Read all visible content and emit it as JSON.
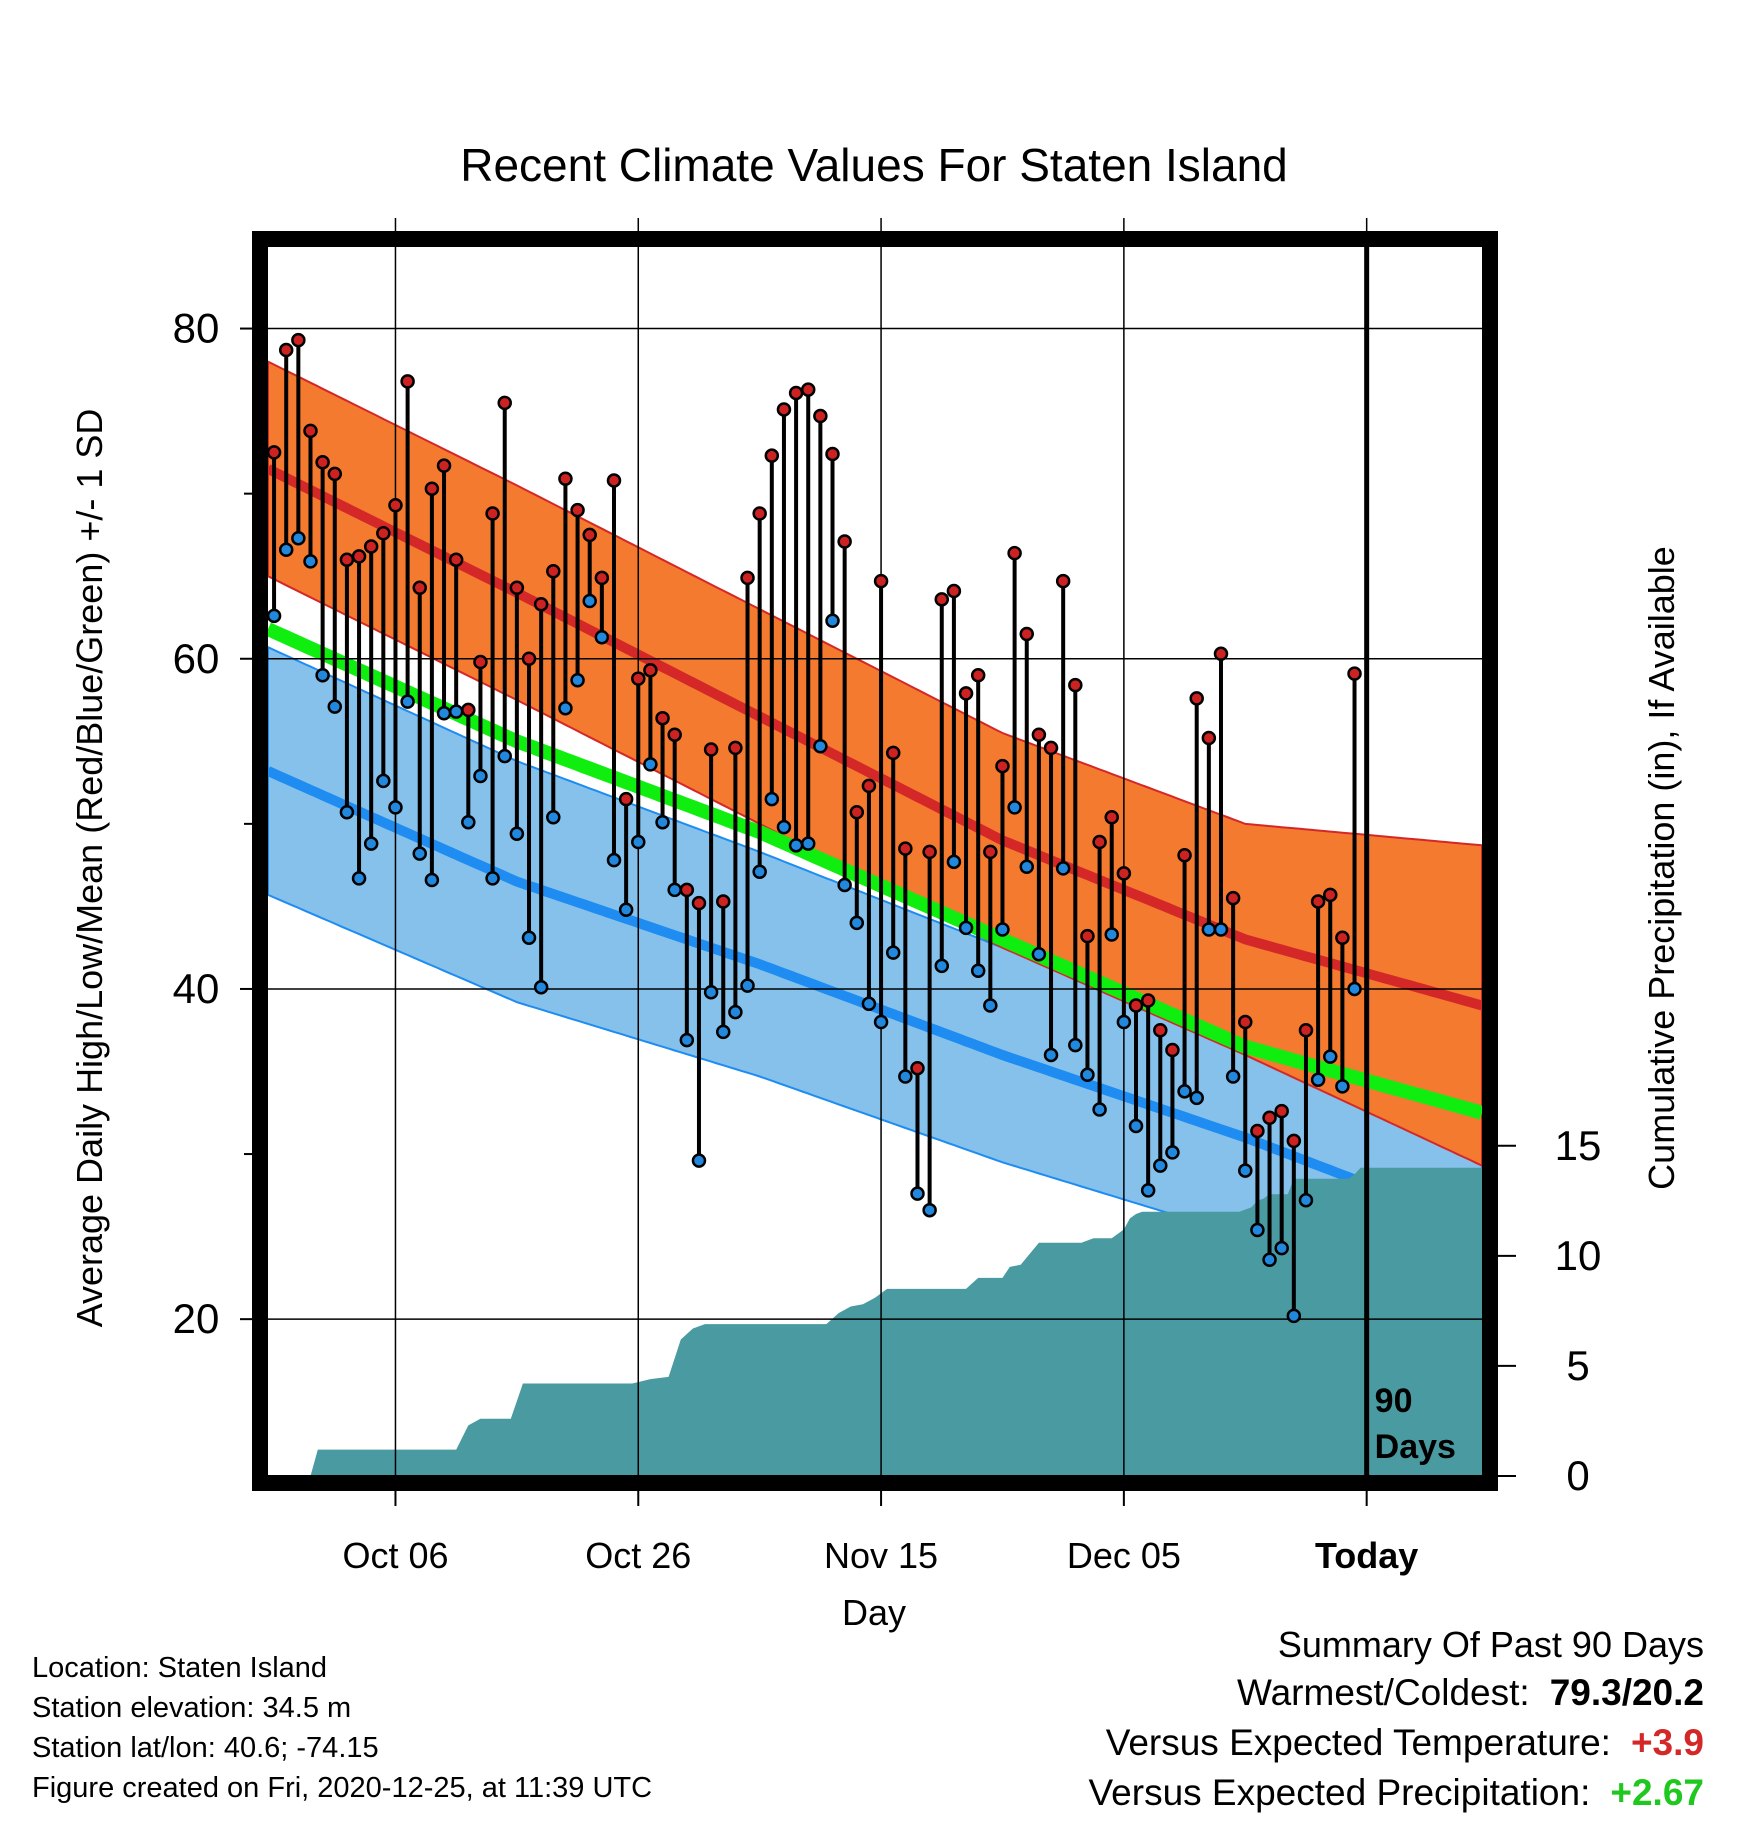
{
  "title": "Recent Climate Values For Staten Island",
  "ylabel_left": "Average Daily High/Low/Mean (Red/Blue/Green) +/- 1 SD",
  "ylabel_right": "Cumulative Precipitation (in), If Available",
  "xlabel": "Day",
  "footer": {
    "location": "Location: Staten Island",
    "elevation": "Station elevation: 34.5 m",
    "latlon": "Station lat/lon: 40.6; -74.15",
    "created": "Figure created on Fri, 2020-12-25, at 11:39 UTC"
  },
  "summary": {
    "title": "Summary Of Past 90 Days",
    "warmest_coldest_label": "Warmest/Coldest:",
    "warmest_coldest_value": "79.3/20.2",
    "vs_temp_label": "Versus Expected Temperature:",
    "vs_temp_value": "+3.9",
    "vs_precip_label": "Versus Expected Precipitation:",
    "vs_precip_value": "+2.67"
  },
  "colors": {
    "high_band": "#f47a30",
    "high_mean": "#d42828",
    "low_band": "#85c1ea",
    "low_mean": "#1e8cf0",
    "mean": "#10ee10",
    "precip": "#4a9aa2",
    "high_dot": "#cc2222",
    "low_dot": "#2288dd"
  },
  "chart_data": {
    "type": "line",
    "x_ticks": [
      {
        "label": "Oct 06",
        "day": 10
      },
      {
        "label": "Oct 26",
        "day": 30
      },
      {
        "label": "Nov 15",
        "day": 50
      },
      {
        "label": "Dec 05",
        "day": 70
      },
      {
        "label": "Today",
        "day": 90
      }
    ],
    "today_label": "90\nDays",
    "xlim": [
      -0.5,
      99.5
    ],
    "ylim_temp": [
      10.5,
      85
    ],
    "yticks_temp": [
      20,
      40,
      60,
      80
    ],
    "yticks_precip": [
      0,
      5,
      10,
      15
    ],
    "precip_scale_top_temp": 30.5,
    "normals": {
      "day": [
        -0.5,
        20,
        40,
        60,
        80,
        99.5
      ],
      "high_mean": [
        71.5,
        64,
        56.5,
        49,
        43,
        39
      ],
      "high_sd": [
        6.5,
        6.5,
        6.5,
        6.5,
        7,
        9.7
      ],
      "low_mean": [
        53.2,
        46.5,
        41.5,
        36,
        31,
        25.5
      ],
      "low_sd": [
        7.5,
        7.3,
        6.8,
        6.5,
        6,
        5.5
      ],
      "mean": [
        61.8,
        55,
        49.5,
        43,
        36.5,
        32.5
      ]
    },
    "observed_highs": [
      72.5,
      78.7,
      79.3,
      73.8,
      71.9,
      71.2,
      66,
      66.2,
      66.8,
      67.6,
      69.3,
      76.8,
      64.3,
      70.3,
      71.7,
      66,
      56.9,
      59.8,
      68.8,
      75.5,
      64.3,
      60,
      63.3,
      65.3,
      70.9,
      69,
      67.5,
      64.9,
      70.8,
      51.5,
      58.8,
      59.3,
      56.4,
      55.4,
      46,
      45.2,
      54.5,
      45.3,
      54.6,
      64.9,
      68.8,
      72.3,
      75.1,
      76.1,
      76.3,
      74.7,
      72.4,
      67.1,
      50.7,
      52.3,
      64.7,
      54.3,
      48.5,
      35.2,
      48.3,
      63.6,
      64.1,
      57.9,
      59,
      48.3,
      53.5,
      66.4,
      61.5,
      55.4,
      54.6,
      64.7,
      58.4,
      43.2,
      48.9,
      50.4,
      47,
      39,
      39.3,
      37.5,
      36.3,
      48.1,
      57.6,
      55.2,
      60.3,
      45.5,
      38,
      31.4,
      32.2,
      32.6,
      30.8,
      37.5,
      45.3,
      45.7,
      43.1,
      59.1
    ],
    "observed_lows": [
      62.6,
      66.6,
      67.3,
      65.9,
      59,
      57.1,
      50.7,
      46.7,
      48.8,
      52.6,
      51,
      57.4,
      48.2,
      46.6,
      56.7,
      56.8,
      50.1,
      52.9,
      46.7,
      54.1,
      49.4,
      43.1,
      40.1,
      50.4,
      57,
      58.7,
      63.5,
      61.3,
      47.8,
      44.8,
      48.9,
      53.6,
      50.1,
      46,
      36.9,
      29.6,
      39.8,
      37.4,
      38.6,
      40.2,
      47.1,
      51.5,
      49.8,
      48.7,
      48.8,
      54.7,
      62.3,
      46.3,
      44,
      39.1,
      38,
      42.2,
      34.7,
      27.6,
      26.6,
      41.4,
      47.7,
      43.7,
      41.1,
      39,
      43.6,
      51,
      47.4,
      42.1,
      36,
      47.3,
      36.6,
      34.8,
      32.7,
      43.3,
      38,
      31.7,
      27.8,
      29.3,
      30.1,
      33.8,
      33.4,
      43.6,
      43.6,
      34.7,
      29,
      25.4,
      23.6,
      24.3,
      20.2,
      27.2,
      34.5,
      35.9,
      34.1,
      40
    ],
    "precip_cumulative": {
      "day": [
        -0.5,
        3,
        3.6,
        15,
        16,
        17,
        19.5,
        20.5,
        29.5,
        31,
        32.5,
        33.5,
        34.5,
        35.5,
        37.5,
        45.5,
        46.5,
        47.5,
        48.5,
        49.5,
        50.5,
        57,
        58,
        60,
        60.6,
        61.5,
        63,
        66.5,
        67.5,
        69,
        69.5,
        70,
        70.5,
        71,
        71.5,
        72,
        79.5,
        80.5,
        81,
        81.5,
        82,
        83.5,
        84,
        85,
        87,
        88,
        88.5,
        89,
        89.5,
        90,
        99.5
      ],
      "value": [
        0,
        0,
        1.2,
        1.2,
        2.3,
        2.6,
        2.6,
        4.2,
        4.2,
        4.4,
        4.5,
        6.2,
        6.7,
        6.9,
        6.9,
        6.9,
        7.4,
        7.7,
        7.8,
        8.1,
        8.5,
        8.5,
        9.0,
        9.0,
        9.5,
        9.6,
        10.6,
        10.6,
        10.8,
        10.8,
        11.0,
        11.2,
        11.7,
        11.9,
        12.0,
        12.0,
        12.0,
        12.2,
        12.5,
        12.6,
        12.8,
        12.8,
        13.5,
        13.5,
        13.5,
        13.5,
        13.5,
        13.7,
        14.0,
        14.0,
        14.0
      ]
    }
  }
}
